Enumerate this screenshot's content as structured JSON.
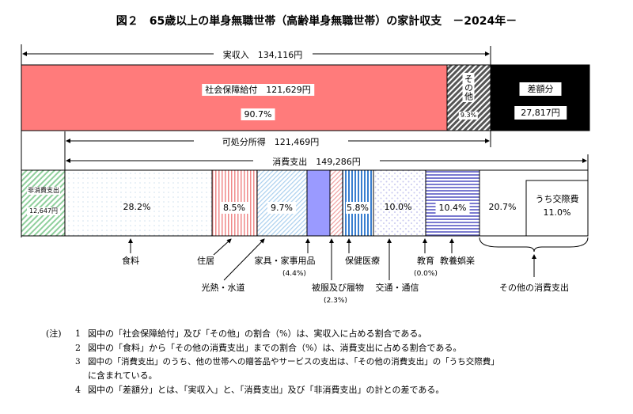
{
  "title": "図２　65歳以上の単身無職世帯（高齢単身無職世帯）の家計収支　－2024年－",
  "income": {
    "total_label": "実収入　134,116円",
    "social_security": {
      "label": "社会保障給付　121,629円",
      "pct": "90.7%",
      "color": "#ff7b7b"
    },
    "other": {
      "label": "その他",
      "pct": "9.3%"
    },
    "deficit": {
      "label": "差額分",
      "amount": "27,817円",
      "color": "#000000"
    }
  },
  "disposable_label": "可処分所得　121,469円",
  "consumption_label": "消費支出　149,286円",
  "expenditure": {
    "non_consumption": {
      "label": "非消費支出",
      "amount": "12,647円"
    },
    "segments": [
      {
        "name": "食料",
        "pct": "28.2%"
      },
      {
        "name": "住居",
        "pct": "8.5%"
      },
      {
        "name": "光熱・水道",
        "pct": "9.7%"
      },
      {
        "name": "家具・家事用品",
        "pct": "(4.4%)"
      },
      {
        "name": "被服及び履物",
        "pct": "(2.3%)"
      },
      {
        "name": "保健医療",
        "pct": "5.8%"
      },
      {
        "name": "交通・通信",
        "pct": "10.0%"
      },
      {
        "name": "教育",
        "pct": "(0.0%)"
      },
      {
        "name": "教養娯楽",
        "pct": "10.4%"
      },
      {
        "name": "その他の消費支出",
        "pct": "20.7%",
        "sub_label": "うち交際費",
        "sub_pct": "11.0%"
      }
    ]
  },
  "notes": {
    "prefix": "(注)",
    "items": [
      {
        "num": "1",
        "text": "図中の「社会保障給付」及び「その他」の割合（%）は、実収入に占める割合である。"
      },
      {
        "num": "2",
        "text": "図中の「食料」から「その他の消費支出」までの割合（%）は、消費支出に占める割合である。"
      },
      {
        "num": "3",
        "text": "図中の「消費支出」のうち、他の世帯への贈答品やサービスの支出は、「その他の消費支出」の「うち交際費」",
        "cont": "に含まれている。"
      },
      {
        "num": "4",
        "text": "図中の「差額分」とは、「実収入」と、「消費支出」及び「非消費支出」の計との差である。"
      }
    ]
  }
}
